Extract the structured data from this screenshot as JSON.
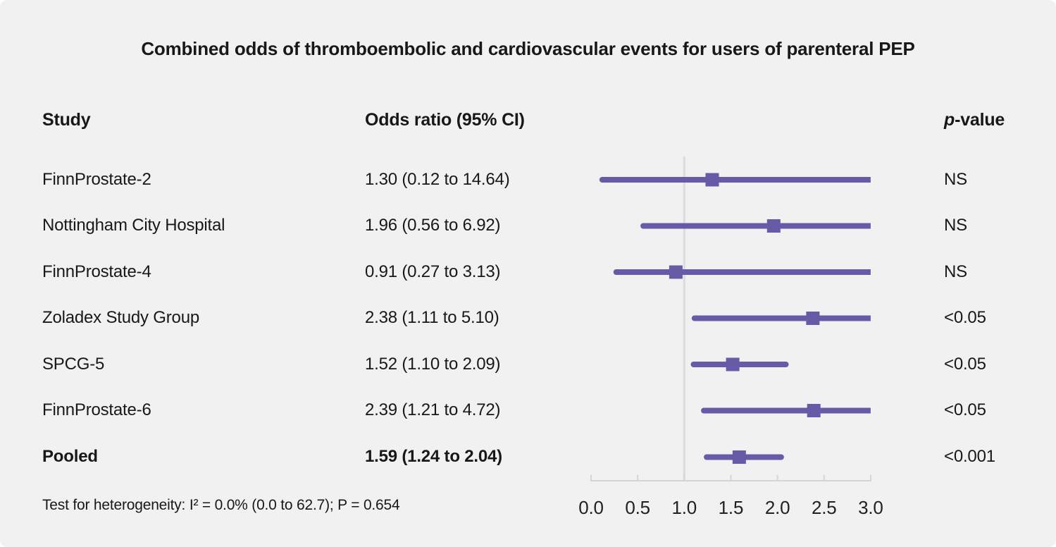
{
  "title": "Combined odds of thromboembolic and cardiovascular events for users of parenteral PEP",
  "columns": {
    "study": "Study",
    "odds_ratio": "Odds ratio (95% CI)",
    "p_italic": "p",
    "p_rest": "-value"
  },
  "rows": [
    {
      "study": "FinnProstate-2",
      "or_text": "1.30 (0.12 to 14.64)",
      "p": "NS"
    },
    {
      "study": "Nottingham City Hospital",
      "or_text": "1.96 (0.56 to 6.92)",
      "p": "NS"
    },
    {
      "study": "FinnProstate-4",
      "or_text": "0.91 (0.27 to 3.13)",
      "p": "NS"
    },
    {
      "study": "Zoladex Study Group",
      "or_text": "2.38 (1.11 to 5.10)",
      "p": "<0.05"
    },
    {
      "study": "SPCG-5",
      "or_text": "1.52 (1.10 to 2.09)",
      "p": "<0.05"
    },
    {
      "study": "FinnProstate-6",
      "or_text": "2.39 (1.21 to 4.72)",
      "p": "<0.05"
    },
    {
      "study": "Pooled",
      "or_text": "1.59 (1.24 to 2.04)",
      "p": "<0.001"
    }
  ],
  "footnote": "Test for heterogeneity: I² = 0.0% (0.0 to 62.7); P = 0.654",
  "chart_data": {
    "type": "forest",
    "title": "Combined odds of thromboembolic and cardiovascular events for users of parenteral PEP",
    "xlim": [
      0.0,
      3.0
    ],
    "x_ticks": [
      0.0,
      0.5,
      1.0,
      1.5,
      2.0,
      2.5,
      3.0
    ],
    "reference_line": 1.0,
    "clip_at": 3.0,
    "series": [
      {
        "study": "FinnProstate-2",
        "or": 1.3,
        "ci_low": 0.12,
        "ci_high": 14.64,
        "p": "NS"
      },
      {
        "study": "Nottingham City Hospital",
        "or": 1.96,
        "ci_low": 0.56,
        "ci_high": 6.92,
        "p": "NS"
      },
      {
        "study": "FinnProstate-4",
        "or": 0.91,
        "ci_low": 0.27,
        "ci_high": 3.13,
        "p": "NS"
      },
      {
        "study": "Zoladex Study Group",
        "or": 2.38,
        "ci_low": 1.11,
        "ci_high": 5.1,
        "p": "<0.05"
      },
      {
        "study": "SPCG-5",
        "or": 1.52,
        "ci_low": 1.1,
        "ci_high": 2.09,
        "p": "<0.05"
      },
      {
        "study": "FinnProstate-6",
        "or": 2.39,
        "ci_low": 1.21,
        "ci_high": 4.72,
        "p": "<0.05"
      },
      {
        "study": "Pooled",
        "or": 1.59,
        "ci_low": 1.24,
        "ci_high": 2.04,
        "p": "<0.001",
        "pooled": true
      }
    ],
    "colors": {
      "marker": "#675aa7",
      "ci_line": "#675aa7",
      "reference_line": "#d9dde1",
      "axis": "#d2d6d9",
      "tick_label": "#202124",
      "background": "#f1f1f2",
      "text": "#17181a"
    }
  }
}
